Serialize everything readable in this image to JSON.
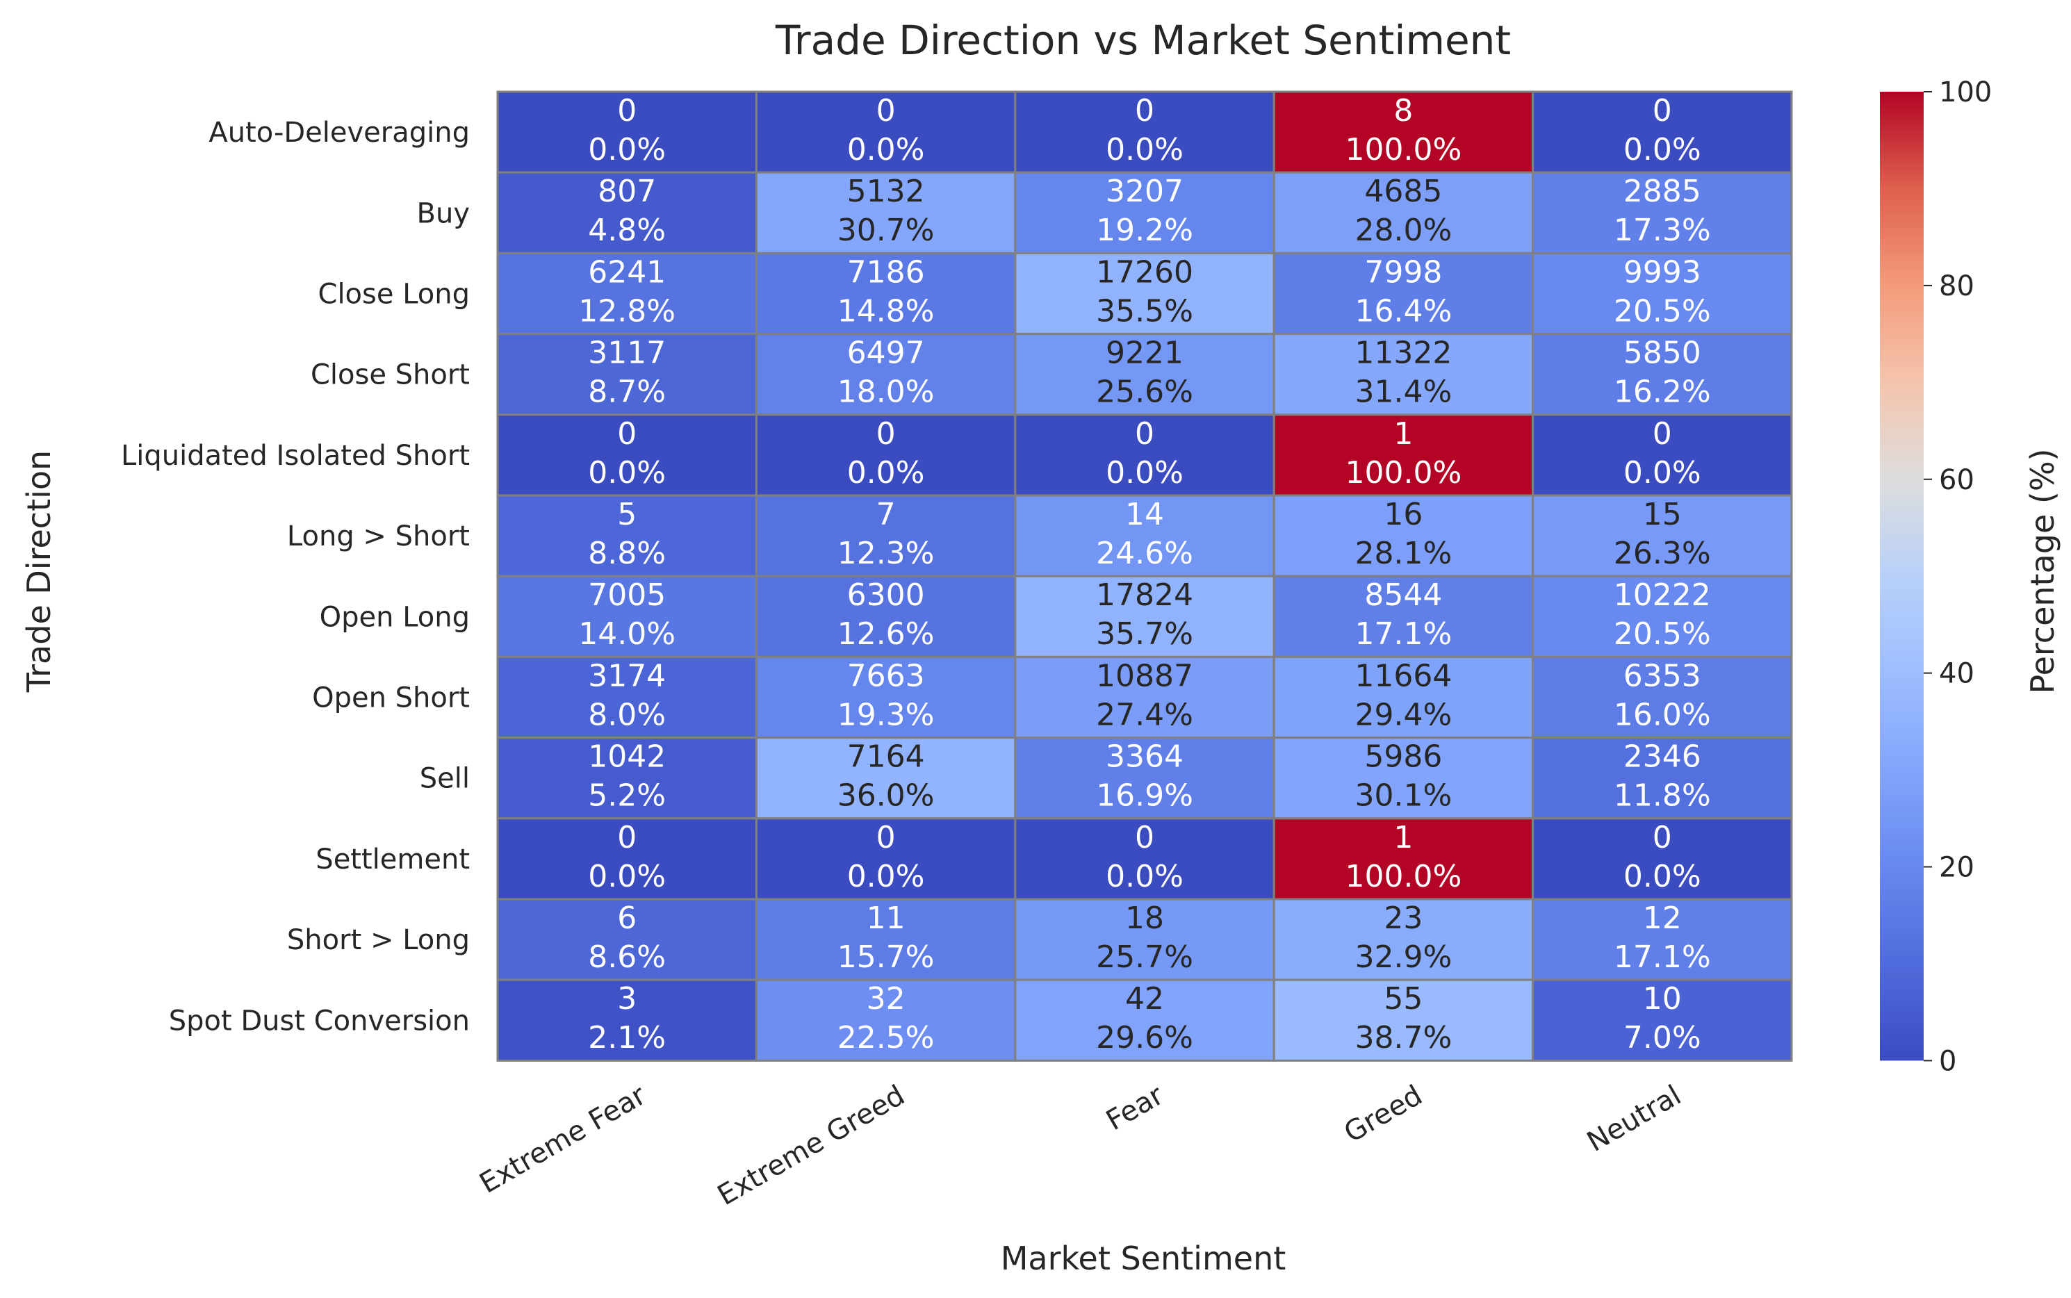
{
  "chart_data": {
    "type": "heatmap",
    "title": "Trade Direction vs Market Sentiment",
    "xlabel": "Market Sentiment",
    "ylabel": "Trade Direction",
    "colorbar_label": "Percentage (%)",
    "colorbar_ticks": [
      "0",
      "20",
      "40",
      "60",
      "80",
      "100"
    ],
    "colorbar_range": [
      0,
      100
    ],
    "colormap": "coolwarm",
    "x_categories": [
      "Extreme Fear",
      "Extreme Greed",
      "Fear",
      "Greed",
      "Neutral"
    ],
    "y_categories": [
      "Auto-Deleveraging",
      "Buy",
      "Close Long",
      "Close Short",
      "Liquidated Isolated Short",
      "Long > Short",
      "Open Long",
      "Open Short",
      "Sell",
      "Settlement",
      "Short > Long",
      "Spot Dust Conversion"
    ],
    "counts": [
      [
        "0",
        "0",
        "0",
        "8",
        "0"
      ],
      [
        "807",
        "5132",
        "3207",
        "4685",
        "2885"
      ],
      [
        "6241",
        "7186",
        "17260",
        "7998",
        "9993"
      ],
      [
        "3117",
        "6497",
        "9221",
        "11322",
        "5850"
      ],
      [
        "0",
        "0",
        "0",
        "1",
        "0"
      ],
      [
        "5",
        "7",
        "14",
        "16",
        "15"
      ],
      [
        "7005",
        "6300",
        "17824",
        "8544",
        "10222"
      ],
      [
        "3174",
        "7663",
        "10887",
        "11664",
        "6353"
      ],
      [
        "1042",
        "7164",
        "3364",
        "5986",
        "2346"
      ],
      [
        "0",
        "0",
        "0",
        "1",
        "0"
      ],
      [
        "6",
        "11",
        "18",
        "23",
        "12"
      ],
      [
        "3",
        "32",
        "42",
        "55",
        "10"
      ]
    ],
    "percentages": [
      [
        "0.0%",
        "0.0%",
        "0.0%",
        "100.0%",
        "0.0%"
      ],
      [
        "4.8%",
        "30.7%",
        "19.2%",
        "28.0%",
        "17.3%"
      ],
      [
        "12.8%",
        "14.8%",
        "35.5%",
        "16.4%",
        "20.5%"
      ],
      [
        "8.7%",
        "18.0%",
        "25.6%",
        "31.4%",
        "16.2%"
      ],
      [
        "0.0%",
        "0.0%",
        "0.0%",
        "100.0%",
        "0.0%"
      ],
      [
        "8.8%",
        "12.3%",
        "24.6%",
        "28.1%",
        "26.3%"
      ],
      [
        "14.0%",
        "12.6%",
        "35.7%",
        "17.1%",
        "20.5%"
      ],
      [
        "8.0%",
        "19.3%",
        "27.4%",
        "29.4%",
        "16.0%"
      ],
      [
        "5.2%",
        "36.0%",
        "16.9%",
        "30.1%",
        "11.8%"
      ],
      [
        "0.0%",
        "0.0%",
        "0.0%",
        "100.0%",
        "0.0%"
      ],
      [
        "8.6%",
        "15.7%",
        "25.7%",
        "32.9%",
        "17.1%"
      ],
      [
        "2.1%",
        "22.5%",
        "29.6%",
        "38.7%",
        "7.0%"
      ]
    ],
    "values": [
      [
        0.0,
        0.0,
        0.0,
        100.0,
        0.0
      ],
      [
        4.8,
        30.7,
        19.2,
        28.0,
        17.3
      ],
      [
        12.8,
        14.8,
        35.5,
        16.4,
        20.5
      ],
      [
        8.7,
        18.0,
        25.6,
        31.4,
        16.2
      ],
      [
        0.0,
        0.0,
        0.0,
        100.0,
        0.0
      ],
      [
        8.8,
        12.3,
        24.6,
        28.1,
        26.3
      ],
      [
        14.0,
        12.6,
        35.7,
        17.1,
        20.5
      ],
      [
        8.0,
        19.3,
        27.4,
        29.4,
        16.0
      ],
      [
        5.2,
        36.0,
        16.9,
        30.1,
        11.8
      ],
      [
        0.0,
        0.0,
        0.0,
        100.0,
        0.0
      ],
      [
        8.6,
        15.7,
        25.7,
        32.9,
        17.1
      ],
      [
        2.1,
        22.5,
        29.6,
        38.7,
        7.0
      ]
    ]
  }
}
